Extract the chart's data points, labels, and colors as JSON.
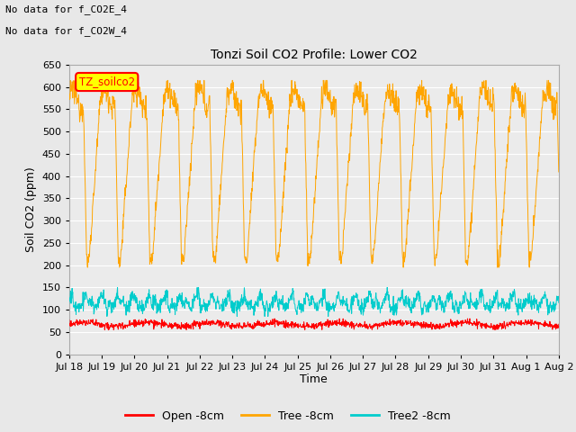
{
  "title": "Tonzi Soil CO2 Profile: Lower CO2",
  "ylabel": "Soil CO2 (ppm)",
  "xlabel": "Time",
  "annotations": [
    "No data for f_CO2E_4",
    "No data for f_CO2W_4"
  ],
  "cursor_label": "TZ_soilco2",
  "ylim": [
    0,
    650
  ],
  "yticks": [
    0,
    50,
    100,
    150,
    200,
    250,
    300,
    350,
    400,
    450,
    500,
    550,
    600,
    650
  ],
  "xtick_labels": [
    "Jul 18",
    "Jul 19",
    "Jul 20",
    "Jul 21",
    "Jul 22",
    "Jul 23",
    "Jul 24",
    "Jul 25",
    "Jul 26",
    "Jul 27",
    "Jul 28",
    "Jul 29",
    "Jul 30",
    "Jul 31",
    "Aug 1",
    "Aug 2"
  ],
  "colors": {
    "open": "#FF0000",
    "tree": "#FFA500",
    "tree2": "#00CCCC",
    "background": "#E8E8E8",
    "plot_bg": "#EBEBEB",
    "grid": "#FFFFFF",
    "cursor_bg": "#FFFF00",
    "cursor_border": "#FF0000"
  },
  "legend_labels": [
    "Open -8cm",
    "Tree -8cm",
    "Tree2 -8cm"
  ],
  "n_days": 15.5,
  "pts_per_day": 96
}
